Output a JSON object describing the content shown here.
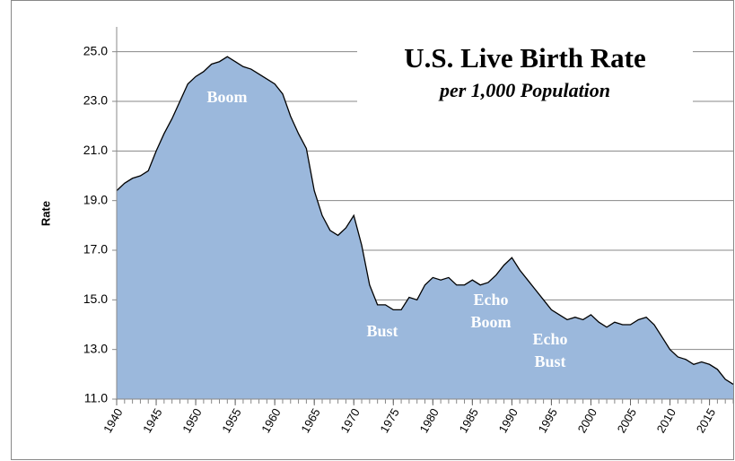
{
  "chart_data": {
    "type": "area",
    "title": "U.S. Live Birth Rate",
    "subtitle": "per 1,000 Population",
    "y_label": "Rate",
    "annotations": [
      [
        "Boom"
      ],
      [
        "Bust"
      ],
      [
        "Echo",
        "Boom"
      ],
      [
        "Echo",
        "Bust"
      ]
    ],
    "x": [
      1940,
      1941,
      1942,
      1943,
      1944,
      1945,
      1946,
      1947,
      1948,
      1949,
      1950,
      1951,
      1952,
      1953,
      1954,
      1955,
      1956,
      1957,
      1958,
      1959,
      1960,
      1961,
      1962,
      1963,
      1964,
      1965,
      1966,
      1967,
      1968,
      1969,
      1970,
      1971,
      1972,
      1973,
      1974,
      1975,
      1976,
      1977,
      1978,
      1979,
      1980,
      1981,
      1982,
      1983,
      1984,
      1985,
      1986,
      1987,
      1988,
      1989,
      1990,
      1991,
      1992,
      1993,
      1994,
      1995,
      1996,
      1997,
      1998,
      1999,
      2000,
      2001,
      2002,
      2003,
      2004,
      2005,
      2006,
      2007,
      2008,
      2009,
      2010,
      2011,
      2012,
      2013,
      2014,
      2015,
      2016,
      2017,
      2018
    ],
    "values": [
      19.4,
      19.7,
      19.9,
      20.0,
      20.2,
      21.0,
      21.7,
      22.3,
      23.0,
      23.7,
      24.0,
      24.2,
      24.5,
      24.6,
      24.8,
      24.6,
      24.4,
      24.3,
      24.1,
      23.9,
      23.7,
      23.3,
      22.4,
      21.7,
      21.1,
      19.4,
      18.4,
      17.8,
      17.6,
      17.9,
      18.4,
      17.2,
      15.6,
      14.8,
      14.8,
      14.6,
      14.6,
      15.1,
      15.0,
      15.6,
      15.9,
      15.8,
      15.9,
      15.6,
      15.6,
      15.8,
      15.6,
      15.7,
      16.0,
      16.4,
      16.7,
      16.2,
      15.8,
      15.4,
      15.0,
      14.6,
      14.4,
      14.2,
      14.3,
      14.2,
      14.4,
      14.1,
      13.9,
      14.1,
      14.0,
      14.0,
      14.2,
      14.3,
      14.0,
      13.5,
      13.0,
      12.7,
      12.6,
      12.4,
      12.5,
      12.4,
      12.2,
      11.8,
      11.6
    ],
    "color": "#9bb8dc",
    "xlim": [
      1940,
      2018
    ],
    "xticks": [
      1940,
      1945,
      1950,
      1955,
      1960,
      1965,
      1970,
      1975,
      1980,
      1985,
      1990,
      1995,
      2000,
      2005,
      2010,
      2015
    ],
    "ylim": [
      11,
      26
    ],
    "yticks": [
      {
        "value": 11,
        "label": "11.0"
      },
      {
        "value": 13,
        "label": "13.0"
      },
      {
        "value": 15,
        "label": "15.0"
      },
      {
        "value": 17,
        "label": "17.0"
      },
      {
        "value": 19,
        "label": "19.0"
      },
      {
        "value": 21,
        "label": "21.0"
      },
      {
        "value": 23,
        "label": "23.0"
      },
      {
        "value": 25,
        "label": "25.0"
      }
    ],
    "grid": true
  }
}
